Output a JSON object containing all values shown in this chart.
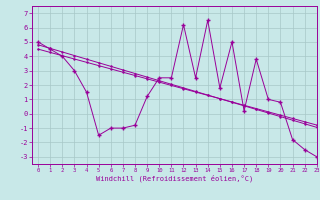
{
  "xlabel": "Windchill (Refroidissement éolien,°C)",
  "x_values": [
    0,
    1,
    2,
    3,
    4,
    5,
    6,
    7,
    8,
    9,
    10,
    11,
    12,
    13,
    14,
    15,
    16,
    17,
    18,
    19,
    20,
    21,
    22,
    23
  ],
  "y_main": [
    5.0,
    4.5,
    4.0,
    3.0,
    1.5,
    -1.5,
    -1.0,
    -1.0,
    -0.8,
    1.2,
    2.5,
    2.5,
    6.2,
    2.5,
    6.5,
    1.8,
    5.0,
    0.2,
    3.8,
    1.0,
    0.8,
    -1.8,
    -2.5,
    -3.0
  ],
  "y_trend1": [
    4.8,
    4.55,
    4.3,
    4.05,
    3.8,
    3.55,
    3.3,
    3.05,
    2.8,
    2.55,
    2.3,
    2.05,
    1.8,
    1.55,
    1.3,
    1.05,
    0.8,
    0.55,
    0.3,
    0.05,
    -0.2,
    -0.45,
    -0.7,
    -0.95
  ],
  "y_trend2": [
    4.5,
    4.27,
    4.04,
    3.81,
    3.58,
    3.35,
    3.12,
    2.89,
    2.66,
    2.43,
    2.2,
    1.97,
    1.74,
    1.51,
    1.28,
    1.05,
    0.82,
    0.59,
    0.36,
    0.13,
    -0.1,
    -0.33,
    -0.56,
    -0.79
  ],
  "line_color": "#990099",
  "bg_color": "#c8e8e8",
  "grid_color": "#a8c8c8",
  "xlim": [
    -0.5,
    23
  ],
  "ylim": [
    -3.5,
    7.5
  ],
  "yticks": [
    -3,
    -2,
    -1,
    0,
    1,
    2,
    3,
    4,
    5,
    6,
    7
  ],
  "xticks": [
    0,
    1,
    2,
    3,
    4,
    5,
    6,
    7,
    8,
    9,
    10,
    11,
    12,
    13,
    14,
    15,
    16,
    17,
    18,
    19,
    20,
    21,
    22,
    23
  ]
}
